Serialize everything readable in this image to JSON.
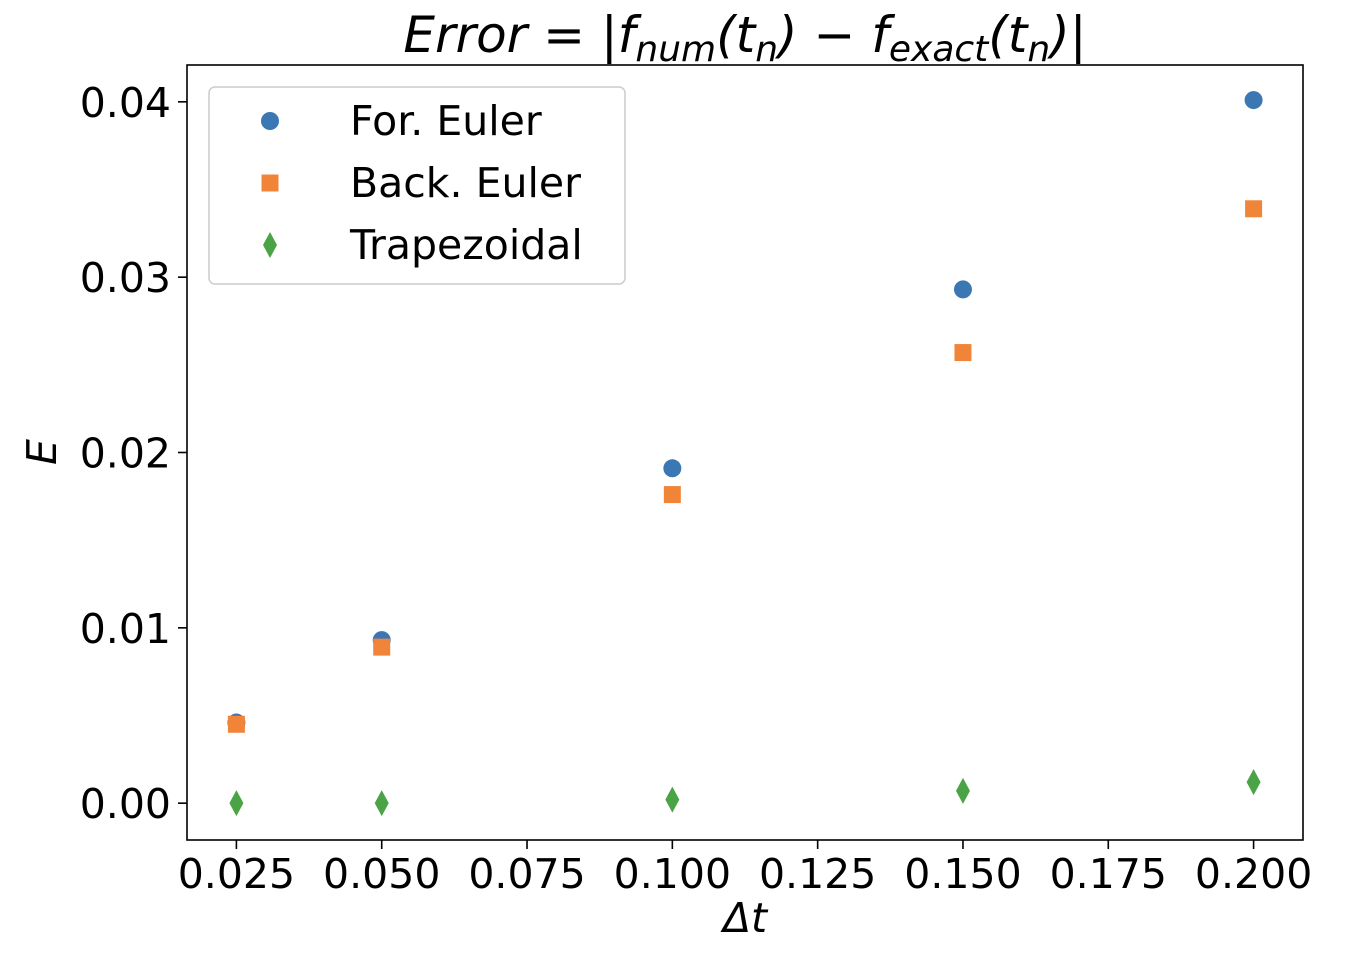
{
  "chart_data": {
    "type": "scatter",
    "title": {
      "lhs": "Error",
      "eq": " = |",
      "f1": "f",
      "f1_sub": "num",
      "f1_arg": "(t",
      "f1_arg_sub": "n",
      "f1_close": ")",
      "minus": " − ",
      "f2": "f",
      "f2_sub": "exact",
      "f2_arg": "(t",
      "f2_arg_sub": "n",
      "f2_close": ")|"
    },
    "xlabel": "Δt",
    "ylabel": "E",
    "xlim": [
      0.0165,
      0.2085
    ],
    "ylim": [
      -0.0021,
      0.0421
    ],
    "xticks": [
      0.025,
      0.05,
      0.075,
      0.1,
      0.125,
      0.15,
      0.175,
      0.2
    ],
    "xtick_labels": [
      "0.025",
      "0.050",
      "0.075",
      "0.100",
      "0.125",
      "0.150",
      "0.175",
      "0.200"
    ],
    "yticks": [
      0.0,
      0.01,
      0.02,
      0.03,
      0.04
    ],
    "ytick_labels": [
      "0.00",
      "0.01",
      "0.02",
      "0.03",
      "0.04"
    ],
    "grid": false,
    "legend_position": "top-left",
    "x": [
      0.025,
      0.05,
      0.1,
      0.15,
      0.2
    ],
    "series": [
      {
        "name": "For. Euler",
        "marker": "circle",
        "color": "#3a77b3",
        "values": [
          0.0046,
          0.0093,
          0.0191,
          0.0293,
          0.0401
        ]
      },
      {
        "name": "Back. Euler",
        "marker": "square",
        "color": "#f0853a",
        "values": [
          0.0045,
          0.0089,
          0.0176,
          0.0257,
          0.0339
        ]
      },
      {
        "name": "Trapezoidal",
        "marker": "diamond",
        "color": "#4aa344",
        "values": [
          0.0,
          0.0,
          0.0002,
          0.0007,
          0.0012
        ]
      }
    ]
  }
}
